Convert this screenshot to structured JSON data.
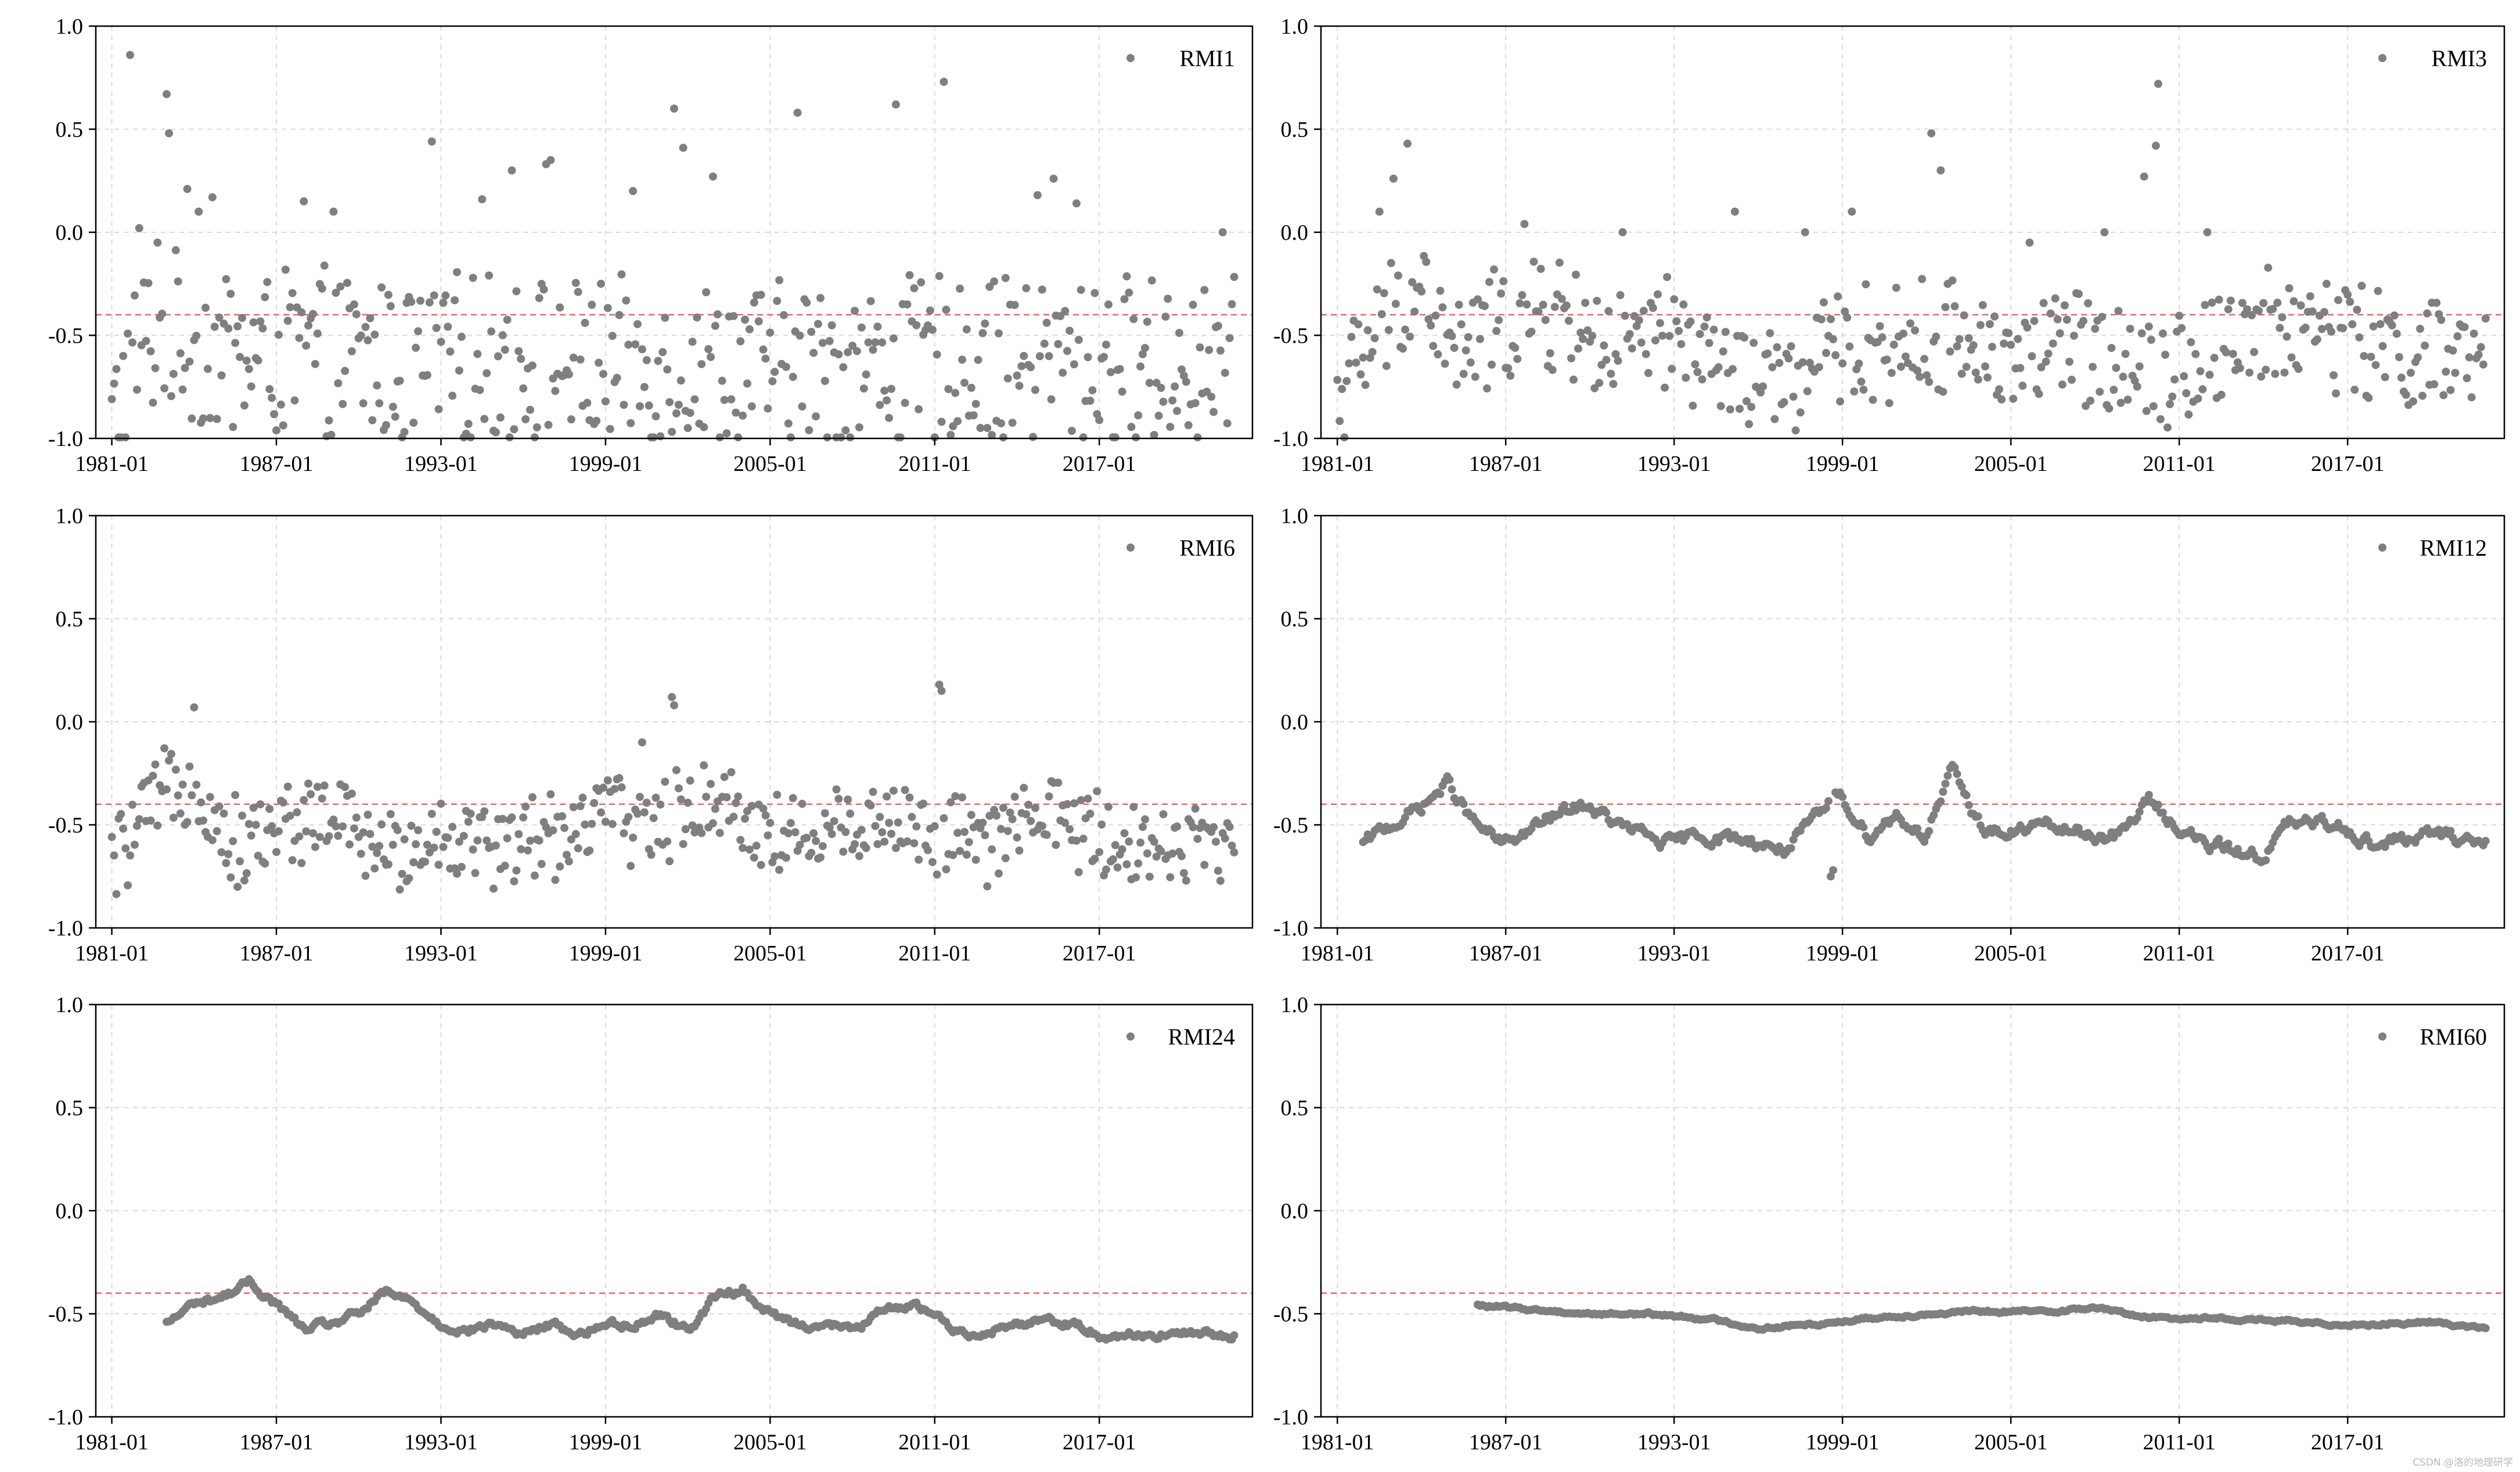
{
  "colors": {
    "marker": "#7f7f7f",
    "grid": "#d9d9d9",
    "threshold": "#e06666",
    "axes": "#000000"
  },
  "watermark": "CSDN @洛的地理研学",
  "chart_data": [
    {
      "type": "scatter",
      "series_name": "RMI1",
      "legend": "top-right",
      "xlim": [
        "1980-06",
        "2022-08"
      ],
      "ylim": [
        -1.0,
        1.0
      ],
      "xticks": [
        "1981-01",
        "1987-01",
        "1993-01",
        "1999-01",
        "2005-01",
        "2011-01",
        "2017-01"
      ],
      "yticks": [
        "-1.0",
        "-0.5",
        "0.0",
        "0.5",
        "1.0"
      ],
      "grid": true,
      "threshold_y": -0.4,
      "x_start": "1981-01",
      "x_end": "2021-12",
      "step_months": 1,
      "anchors": [
        [
          0,
          -0.95
        ],
        [
          12,
          -0.55
        ],
        [
          24,
          -0.5
        ],
        [
          36,
          -0.55
        ],
        [
          60,
          -0.6
        ],
        [
          96,
          -0.6
        ],
        [
          132,
          -0.65
        ],
        [
          168,
          -0.6
        ],
        [
          216,
          -0.65
        ],
        [
          264,
          -0.65
        ],
        [
          312,
          -0.65
        ],
        [
          360,
          -0.62
        ],
        [
          408,
          -0.62
        ],
        [
          491,
          -0.65
        ]
      ],
      "spread": 0.33,
      "outliers": [
        [
          8,
          0.86
        ],
        [
          12,
          0.02
        ],
        [
          20,
          -0.05
        ],
        [
          24,
          0.67
        ],
        [
          25,
          0.48
        ],
        [
          33,
          0.21
        ],
        [
          38,
          0.1
        ],
        [
          44,
          0.17
        ],
        [
          84,
          0.15
        ],
        [
          97,
          0.1
        ],
        [
          140,
          0.44
        ],
        [
          162,
          0.16
        ],
        [
          175,
          0.3
        ],
        [
          190,
          0.33
        ],
        [
          192,
          0.35
        ],
        [
          228,
          0.2
        ],
        [
          246,
          0.6
        ],
        [
          250,
          0.41
        ],
        [
          263,
          0.27
        ],
        [
          300,
          0.58
        ],
        [
          343,
          0.62
        ],
        [
          364,
          0.73
        ],
        [
          405,
          0.18
        ],
        [
          412,
          0.26
        ],
        [
          422,
          0.14
        ],
        [
          486,
          0.0
        ]
      ]
    },
    {
      "type": "scatter",
      "series_name": "RMI3",
      "legend": "top-right",
      "xlim": [
        "1980-06",
        "2022-08"
      ],
      "ylim": [
        -1.0,
        1.0
      ],
      "xticks": [
        "1981-01",
        "1987-01",
        "1993-01",
        "1999-01",
        "2005-01",
        "2011-01",
        "2017-01"
      ],
      "yticks": [
        "-1.0",
        "-0.5",
        "0.0",
        "0.5",
        "1.0"
      ],
      "grid": true,
      "threshold_y": -0.4,
      "x_start": "1981-01",
      "x_end": "2021-12",
      "step_months": 1,
      "anchors": [
        [
          0,
          -0.8
        ],
        [
          24,
          -0.4
        ],
        [
          36,
          -0.25
        ],
        [
          48,
          -0.6
        ],
        [
          72,
          -0.45
        ],
        [
          96,
          -0.4
        ],
        [
          120,
          -0.6
        ],
        [
          144,
          -0.5
        ],
        [
          168,
          -0.7
        ],
        [
          192,
          -0.75
        ],
        [
          216,
          -0.55
        ],
        [
          240,
          -0.55
        ],
        [
          264,
          -0.5
        ],
        [
          288,
          -0.6
        ],
        [
          312,
          -0.55
        ],
        [
          336,
          -0.6
        ],
        [
          360,
          -0.65
        ],
        [
          384,
          -0.5
        ],
        [
          408,
          -0.45
        ],
        [
          432,
          -0.5
        ],
        [
          456,
          -0.6
        ],
        [
          491,
          -0.65
        ]
      ],
      "spread": 0.22,
      "outliers": [
        [
          18,
          0.1
        ],
        [
          24,
          0.26
        ],
        [
          30,
          0.43
        ],
        [
          80,
          0.04
        ],
        [
          122,
          0.0
        ],
        [
          170,
          0.1
        ],
        [
          200,
          0.0
        ],
        [
          220,
          0.1
        ],
        [
          254,
          0.48
        ],
        [
          258,
          0.3
        ],
        [
          296,
          -0.05
        ],
        [
          328,
          0.0
        ],
        [
          345,
          0.27
        ],
        [
          350,
          0.42
        ],
        [
          351,
          0.72
        ],
        [
          372,
          0.0
        ],
        [
          423,
          -0.25
        ]
      ]
    },
    {
      "type": "scatter",
      "series_name": "RMI6",
      "legend": "top-right",
      "xlim": [
        "1980-06",
        "2022-08"
      ],
      "ylim": [
        -1.0,
        1.0
      ],
      "xticks": [
        "1981-01",
        "1987-01",
        "1993-01",
        "1999-01",
        "2005-01",
        "2011-01",
        "2017-01"
      ],
      "yticks": [
        "-1.0",
        "-0.5",
        "0.0",
        "0.5",
        "1.0"
      ],
      "grid": true,
      "threshold_y": -0.4,
      "x_start": "1981-01",
      "x_end": "2021-12",
      "step_months": 1,
      "anchors": [
        [
          0,
          -0.7
        ],
        [
          12,
          -0.5
        ],
        [
          24,
          -0.35
        ],
        [
          36,
          -0.25
        ],
        [
          48,
          -0.55
        ],
        [
          60,
          -0.6
        ],
        [
          72,
          -0.5
        ],
        [
          96,
          -0.45
        ],
        [
          120,
          -0.65
        ],
        [
          144,
          -0.55
        ],
        [
          168,
          -0.6
        ],
        [
          192,
          -0.55
        ],
        [
          216,
          -0.45
        ],
        [
          240,
          -0.5
        ],
        [
          264,
          -0.35
        ],
        [
          288,
          -0.55
        ],
        [
          312,
          -0.55
        ],
        [
          336,
          -0.45
        ],
        [
          360,
          -0.55
        ],
        [
          384,
          -0.6
        ],
        [
          408,
          -0.45
        ],
        [
          432,
          -0.55
        ],
        [
          456,
          -0.6
        ],
        [
          491,
          -0.6
        ]
      ],
      "spread": 0.16,
      "outliers": [
        [
          36,
          0.07
        ],
        [
          232,
          -0.1
        ],
        [
          245,
          0.12
        ],
        [
          246,
          0.08
        ],
        [
          362,
          0.18
        ],
        [
          363,
          0.15
        ],
        [
          382,
          -0.55
        ]
      ]
    },
    {
      "type": "scatter",
      "series_name": "RMI12",
      "legend": "top-right",
      "xlim": [
        "1980-06",
        "2022-08"
      ],
      "ylim": [
        -1.0,
        1.0
      ],
      "xticks": [
        "1981-01",
        "1987-01",
        "1993-01",
        "1999-01",
        "2005-01",
        "2011-01",
        "2017-01"
      ],
      "yticks": [
        "-1.0",
        "-0.5",
        "0.0",
        "0.5",
        "1.0"
      ],
      "grid": true,
      "threshold_y": -0.4,
      "x_start": "1981-12",
      "x_end": "2021-12",
      "step_months": 1,
      "anchors": [
        [
          0,
          -0.6
        ],
        [
          12,
          -0.5
        ],
        [
          24,
          -0.42
        ],
        [
          36,
          -0.3
        ],
        [
          48,
          -0.5
        ],
        [
          60,
          -0.6
        ],
        [
          72,
          -0.52
        ],
        [
          84,
          -0.45
        ],
        [
          96,
          -0.4
        ],
        [
          108,
          -0.5
        ],
        [
          132,
          -0.6
        ],
        [
          144,
          -0.55
        ],
        [
          168,
          -0.58
        ],
        [
          180,
          -0.62
        ],
        [
          192,
          -0.5
        ],
        [
          204,
          -0.35
        ],
        [
          216,
          -0.55
        ],
        [
          228,
          -0.45
        ],
        [
          240,
          -0.55
        ],
        [
          252,
          -0.25
        ],
        [
          264,
          -0.5
        ],
        [
          276,
          -0.55
        ],
        [
          288,
          -0.5
        ],
        [
          312,
          -0.55
        ],
        [
          324,
          -0.55
        ],
        [
          336,
          -0.38
        ],
        [
          348,
          -0.5
        ],
        [
          360,
          -0.6
        ],
        [
          384,
          -0.65
        ],
        [
          396,
          -0.5
        ],
        [
          420,
          -0.5
        ],
        [
          432,
          -0.6
        ],
        [
          456,
          -0.55
        ],
        [
          480,
          -0.58
        ]
      ],
      "spread": 0.025,
      "outliers": [
        [
          200,
          -0.75
        ],
        [
          201,
          -0.72
        ]
      ]
    },
    {
      "type": "scatter",
      "series_name": "RMI24",
      "legend": "top-right",
      "xlim": [
        "1980-06",
        "2022-08"
      ],
      "ylim": [
        -1.0,
        1.0
      ],
      "xticks": [
        "1981-01",
        "1987-01",
        "1993-01",
        "1999-01",
        "2005-01",
        "2011-01",
        "2017-01"
      ],
      "yticks": [
        "-1.0",
        "-0.5",
        "0.0",
        "0.5",
        "1.0"
      ],
      "grid": true,
      "threshold_y": -0.4,
      "x_start": "1983-01",
      "x_end": "2021-12",
      "step_months": 1,
      "anchors": [
        [
          0,
          -0.55
        ],
        [
          12,
          -0.45
        ],
        [
          24,
          -0.42
        ],
        [
          36,
          -0.35
        ],
        [
          48,
          -0.45
        ],
        [
          60,
          -0.58
        ],
        [
          72,
          -0.55
        ],
        [
          84,
          -0.5
        ],
        [
          96,
          -0.4
        ],
        [
          108,
          -0.45
        ],
        [
          120,
          -0.55
        ],
        [
          132,
          -0.58
        ],
        [
          144,
          -0.55
        ],
        [
          156,
          -0.6
        ],
        [
          168,
          -0.55
        ],
        [
          180,
          -0.6
        ],
        [
          192,
          -0.55
        ],
        [
          204,
          -0.55
        ],
        [
          216,
          -0.5
        ],
        [
          228,
          -0.58
        ],
        [
          240,
          -0.42
        ],
        [
          252,
          -0.38
        ],
        [
          264,
          -0.5
        ],
        [
          276,
          -0.55
        ],
        [
          288,
          -0.55
        ],
        [
          300,
          -0.58
        ],
        [
          312,
          -0.5
        ],
        [
          324,
          -0.45
        ],
        [
          336,
          -0.5
        ],
        [
          348,
          -0.6
        ],
        [
          360,
          -0.58
        ],
        [
          372,
          -0.55
        ],
        [
          384,
          -0.52
        ],
        [
          396,
          -0.55
        ],
        [
          408,
          -0.6
        ],
        [
          420,
          -0.6
        ],
        [
          467,
          -0.6
        ]
      ],
      "spread": 0.015,
      "outliers": []
    },
    {
      "type": "scatter",
      "series_name": "RMI60",
      "legend": "top-right",
      "xlim": [
        "1980-06",
        "2022-08"
      ],
      "ylim": [
        -1.0,
        1.0
      ],
      "xticks": [
        "1981-01",
        "1987-01",
        "1993-01",
        "1999-01",
        "2005-01",
        "2011-01",
        "2017-01"
      ],
      "yticks": [
        "-1.0",
        "-0.5",
        "0.0",
        "0.5",
        "1.0"
      ],
      "grid": true,
      "threshold_y": -0.4,
      "x_start": "1986-01",
      "x_end": "2021-12",
      "step_months": 1,
      "anchors": [
        [
          0,
          -0.46
        ],
        [
          24,
          -0.48
        ],
        [
          48,
          -0.5
        ],
        [
          72,
          -0.5
        ],
        [
          96,
          -0.52
        ],
        [
          120,
          -0.57
        ],
        [
          144,
          -0.55
        ],
        [
          168,
          -0.52
        ],
        [
          192,
          -0.5
        ],
        [
          216,
          -0.49
        ],
        [
          240,
          -0.49
        ],
        [
          264,
          -0.47
        ],
        [
          288,
          -0.52
        ],
        [
          312,
          -0.52
        ],
        [
          336,
          -0.53
        ],
        [
          360,
          -0.55
        ],
        [
          384,
          -0.55
        ],
        [
          408,
          -0.54
        ],
        [
          431,
          -0.57
        ]
      ],
      "spread": 0.006,
      "outliers": []
    }
  ]
}
